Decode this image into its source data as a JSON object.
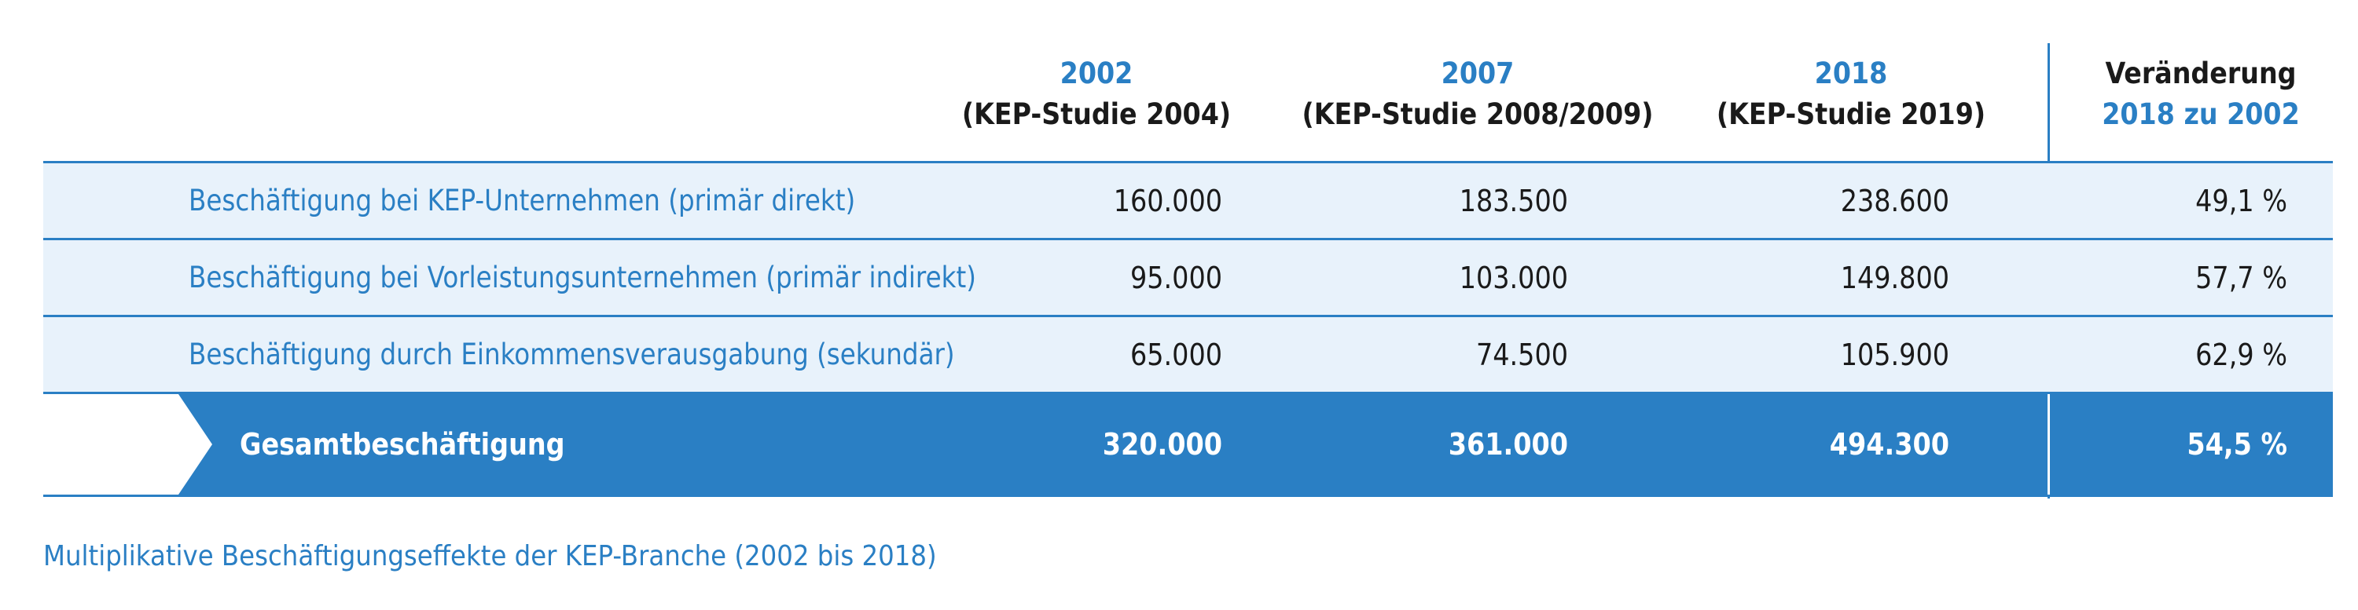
{
  "header": {
    "col1_year": "2002",
    "col1_study": "(KEP-Studie 2004)",
    "col2_year": "2007",
    "col2_study": "(KEP-Studie 2008/2009)",
    "col3_year": "2018",
    "col3_study": "(KEP-Studie 2019)",
    "col4_title": "Veränderung",
    "col4_sub": "2018 zu 2002"
  },
  "rows": [
    {
      "label": "Beschäftigung bei KEP-Unternehmen (primär direkt)",
      "v2002": "160.000",
      "v2007": "183.500",
      "v2018": "238.600",
      "change": "49,1 %"
    },
    {
      "label": "Beschäftigung bei Vorleistungsunternehmen (primär indirekt)",
      "v2002": "95.000",
      "v2007": "103.000",
      "v2018": "149.800",
      "change": "57,7 %"
    },
    {
      "label": "Beschäftigung durch Einkommensverausgabung (sekundär)",
      "v2002": "65.000",
      "v2007": "74.500",
      "v2018": "105.900",
      "change": "62,9 %"
    }
  ],
  "total": {
    "label": "Gesamtbeschäftigung",
    "v2002": "320.000",
    "v2007": "361.000",
    "v2018": "494.300",
    "change": "54,5 %"
  },
  "caption": "Multiplikative Beschäftigungseffekte der KEP-Branche (2002 bis 2018)",
  "colors": {
    "accent": "#2a7fc4",
    "row_bg": "#e8f2fb",
    "total_bg": "#2a7fc4"
  }
}
